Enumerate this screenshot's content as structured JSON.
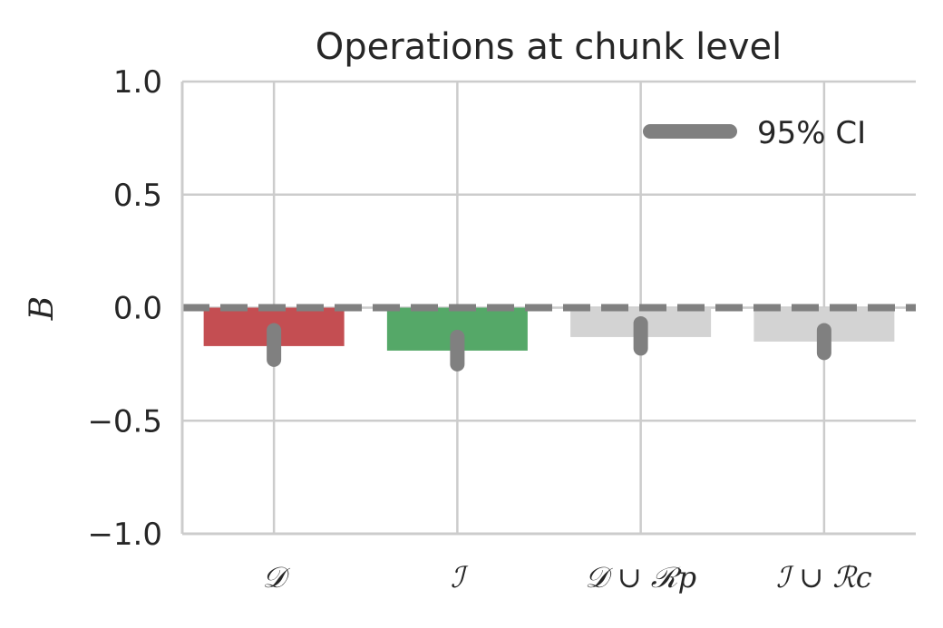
{
  "chart_data": {
    "type": "bar",
    "title": "Operations at chunk level",
    "ylabel": "B",
    "xlabel": "",
    "categories": [
      "𝒟",
      "ℐ",
      "𝒟 ∪ ℛp",
      "ℐ ∪ ℛc"
    ],
    "values": [
      -0.17,
      -0.19,
      -0.13,
      -0.15
    ],
    "ci_low": [
      -0.23,
      -0.25,
      -0.18,
      -0.2
    ],
    "ci_high": [
      -0.1,
      -0.13,
      -0.07,
      -0.1
    ],
    "bar_colors": [
      "#c44e52",
      "#55a868",
      "#d3d3d3",
      "#d3d3d3"
    ],
    "ci_color": "#808080",
    "ylim": [
      -1.0,
      1.0
    ],
    "yticks": [
      1.0,
      0.5,
      0.0,
      -0.5,
      -1.0
    ],
    "ytick_labels": [
      "1.0",
      "0.5",
      "0.0",
      "−0.5",
      "−1.0"
    ],
    "reference_line": 0.0,
    "grid": true,
    "legend": {
      "label": "95% CI",
      "placement": "top-right"
    }
  }
}
